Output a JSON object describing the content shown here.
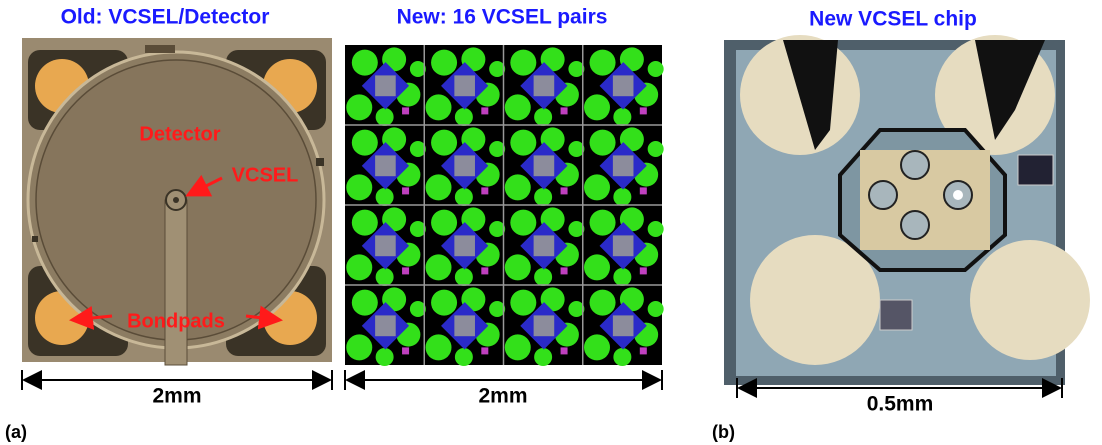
{
  "panels": [
    {
      "title": "Old: VCSEL/Detector",
      "labels": [
        "Detector",
        "VCSEL",
        "Bondpads"
      ],
      "scale": "2mm"
    },
    {
      "title": "New: 16 VCSEL pairs",
      "scale": "2mm"
    },
    {
      "title": "New VCSEL chip",
      "scale": "0.5mm"
    }
  ],
  "captions": [
    "(a)",
    "(b)"
  ]
}
